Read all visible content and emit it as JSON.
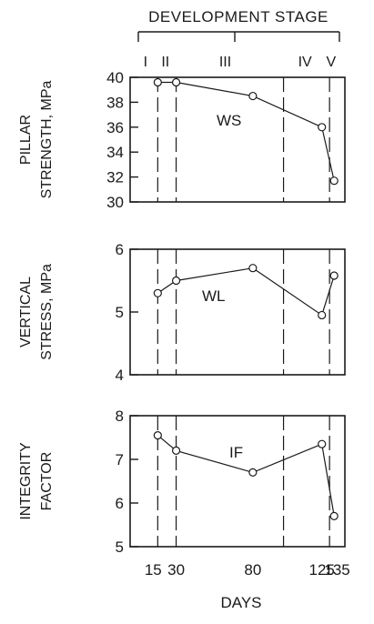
{
  "chart_data": {
    "type": "line",
    "xlabel": "DAYS",
    "x_ticks": [
      15,
      30,
      80,
      125,
      135
    ],
    "x": [
      18,
      30,
      80,
      125,
      133
    ],
    "stage_axis": {
      "title": "DEVELOPMENT STAGE",
      "stages": [
        {
          "label": "I",
          "at": 10
        },
        {
          "label": "II",
          "at": 23
        },
        {
          "label": "III",
          "at": 62
        },
        {
          "label": "IV",
          "at": 114
        },
        {
          "label": "V",
          "at": 131
        }
      ]
    },
    "stage_boundaries": [
      18,
      30,
      100,
      130
    ],
    "panels": [
      {
        "id": "pillar-strength",
        "ylabel": [
          "PILLAR",
          "STRENGTH, MPa"
        ],
        "ylim": [
          30,
          40
        ],
        "yticks": [
          30,
          32,
          34,
          36,
          38,
          40
        ],
        "series_label": "WS",
        "values": [
          39.6,
          39.6,
          38.5,
          36.0,
          31.7
        ]
      },
      {
        "id": "vertical-stress",
        "ylabel": [
          "VERTICAL",
          "STRESS, MPa"
        ],
        "ylim": [
          4,
          6
        ],
        "yticks": [
          4,
          5,
          6
        ],
        "series_label": "WL",
        "values": [
          5.3,
          5.5,
          5.7,
          4.95,
          5.58
        ]
      },
      {
        "id": "integrity-factor",
        "ylabel": [
          "INTEGRITY",
          "FACTOR"
        ],
        "ylim": [
          5,
          8
        ],
        "yticks": [
          5,
          6,
          7,
          8
        ],
        "series_label": "IF",
        "values": [
          7.55,
          7.2,
          6.7,
          7.35,
          5.7
        ]
      }
    ]
  }
}
